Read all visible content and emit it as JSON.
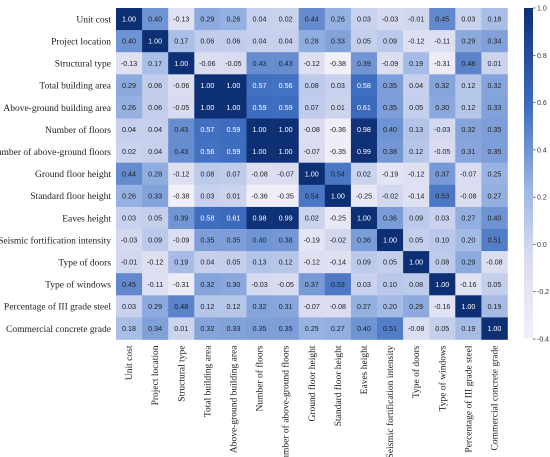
{
  "chart_data": {
    "type": "heatmap",
    "title": "",
    "variables": [
      "Unit cost",
      "Project location",
      "Structural type",
      "Total building area",
      "Above-ground building area",
      "Number of floors",
      "Number of above-ground floors",
      "Ground floor height",
      "Standard floor height",
      "Eaves height",
      "Seismic fortification intensity",
      "Type of doors",
      "Type of windows",
      "Percentage of III grade steel",
      "Commercial concrete grade"
    ],
    "matrix": [
      [
        1.0,
        0.4,
        -0.13,
        0.29,
        0.26,
        0.04,
        0.02,
        0.44,
        0.26,
        0.03,
        -0.03,
        -0.01,
        0.45,
        0.03,
        0.18
      ],
      [
        0.4,
        1.0,
        0.17,
        0.06,
        0.06,
        0.04,
        0.04,
        0.28,
        0.33,
        0.05,
        0.09,
        -0.12,
        -0.11,
        0.29,
        0.34
      ],
      [
        -0.13,
        0.17,
        1.0,
        -0.06,
        -0.05,
        0.43,
        0.43,
        -0.12,
        -0.38,
        0.39,
        -0.09,
        0.19,
        -0.31,
        0.48,
        0.01
      ],
      [
        0.29,
        0.06,
        -0.06,
        1.0,
        1.0,
        0.57,
        0.56,
        0.08,
        0.03,
        0.58,
        0.35,
        0.04,
        0.32,
        0.12,
        0.32
      ],
      [
        0.26,
        0.06,
        -0.05,
        1.0,
        1.0,
        0.59,
        0.59,
        0.07,
        0.01,
        0.61,
        0.35,
        0.05,
        0.3,
        0.12,
        0.33
      ],
      [
        0.04,
        0.04,
        0.43,
        0.57,
        0.59,
        1.0,
        1.0,
        -0.08,
        -0.36,
        0.98,
        0.4,
        0.13,
        -0.03,
        0.32,
        0.35
      ],
      [
        0.02,
        0.04,
        0.43,
        0.56,
        0.59,
        1.0,
        1.0,
        -0.07,
        -0.35,
        0.99,
        0.38,
        0.12,
        -0.05,
        0.31,
        0.35
      ],
      [
        0.44,
        0.28,
        -0.12,
        0.08,
        0.07,
        -0.08,
        -0.07,
        1.0,
        0.54,
        0.02,
        -0.19,
        -0.12,
        0.37,
        -0.07,
        0.25
      ],
      [
        0.26,
        0.33,
        -0.38,
        0.03,
        0.01,
        -0.36,
        -0.35,
        0.54,
        1.0,
        -0.25,
        -0.02,
        -0.14,
        0.53,
        -0.08,
        0.27
      ],
      [
        0.03,
        0.05,
        0.39,
        0.58,
        0.61,
        0.98,
        0.99,
        0.02,
        -0.25,
        1.0,
        0.36,
        0.09,
        0.03,
        0.27,
        0.4
      ],
      [
        -0.03,
        0.09,
        -0.09,
        0.35,
        0.35,
        0.4,
        0.38,
        -0.19,
        -0.02,
        0.36,
        1.0,
        0.05,
        0.1,
        0.2,
        0.51
      ],
      [
        -0.01,
        -0.12,
        0.19,
        0.04,
        0.05,
        0.13,
        0.12,
        -0.12,
        -0.14,
        0.09,
        0.05,
        1.0,
        0.08,
        0.29,
        -0.08
      ],
      [
        0.45,
        -0.11,
        -0.31,
        0.32,
        0.3,
        -0.03,
        -0.05,
        0.37,
        0.53,
        0.03,
        0.1,
        0.08,
        1.0,
        -0.16,
        0.05
      ],
      [
        0.03,
        0.29,
        0.48,
        0.12,
        0.12,
        0.32,
        0.31,
        -0.07,
        -0.08,
        0.27,
        0.2,
        0.29,
        -0.16,
        1.0,
        0.19
      ],
      [
        0.18,
        0.34,
        0.01,
        0.32,
        0.33,
        0.35,
        0.35,
        0.25,
        0.27,
        0.4,
        0.51,
        -0.08,
        0.05,
        0.19,
        1.0
      ]
    ],
    "value_range": [
      -0.4,
      1.0
    ],
    "colormap": {
      "low": "#f2f0f9",
      "mid": "#9db7e4",
      "high": "#0d2f74"
    },
    "colorbar": {
      "ticks": [
        "1.0",
        "0.8",
        "0.6",
        "0.4",
        "0.2",
        "0.0",
        "-0.2",
        "-0.4"
      ],
      "range": [
        -0.4,
        1.0
      ]
    },
    "grid": false,
    "legend": "right"
  }
}
